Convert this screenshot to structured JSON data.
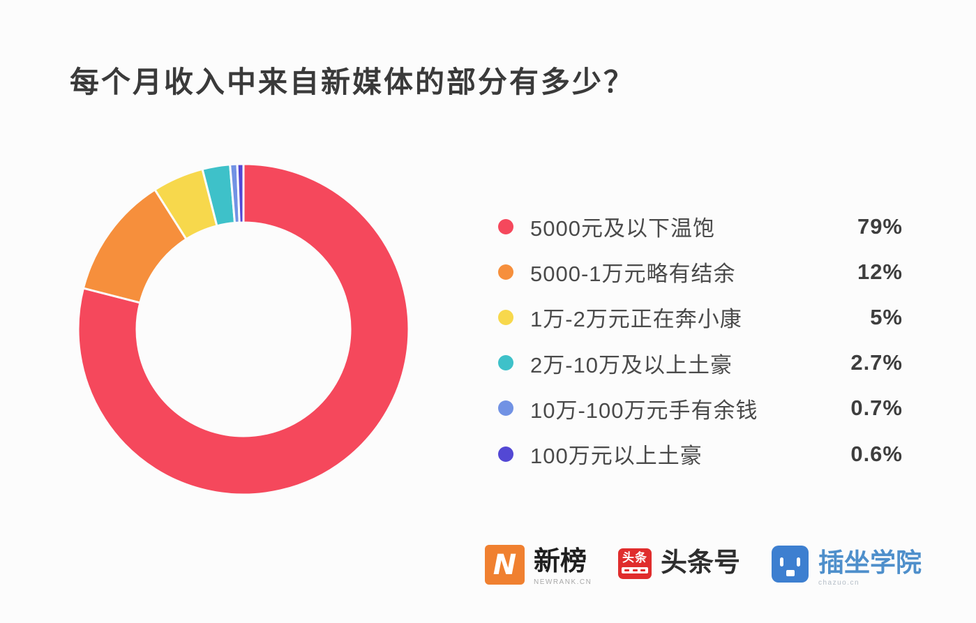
{
  "title": "每个月收入中来自新媒体的部分有多少？",
  "chart_data": {
    "type": "pie",
    "variant": "donut",
    "title": "每个月收入中来自新媒体的部分有多少？",
    "start_angle_deg_from_top": 0,
    "direction": "clockwise",
    "legend_position": "right",
    "slices": [
      {
        "label": "5000元及以下温饱",
        "value": 79,
        "pct_label": "79%",
        "color": "#F5485C"
      },
      {
        "label": "5000-1万元略有结余",
        "value": 12,
        "pct_label": "12%",
        "color": "#F68F3C"
      },
      {
        "label": "1万-2万元正在奔小康",
        "value": 5,
        "pct_label": "5%",
        "color": "#F7D84C"
      },
      {
        "label": "2万-10万及以上土豪",
        "value": 2.7,
        "pct_label": "2.7%",
        "color": "#3EC1C9"
      },
      {
        "label": "10万-100万元手有余钱",
        "value": 0.7,
        "pct_label": "0.7%",
        "color": "#7192E4"
      },
      {
        "label": "100万元以上土豪",
        "value": 0.6,
        "pct_label": "0.6%",
        "color": "#5348D4"
      }
    ]
  },
  "footer": {
    "newrank": {
      "name": "新榜",
      "subtitle": "NEWRANK.CN",
      "icon_letter": "N",
      "brand_color": "#F08030"
    },
    "toutiao": {
      "name": "头条号",
      "icon_text": "头条",
      "brand_color": "#E02D2D"
    },
    "chazuo": {
      "name": "插坐学院",
      "subtitle": "chazuo.cn",
      "brand_color": "#3D7FD0"
    }
  }
}
